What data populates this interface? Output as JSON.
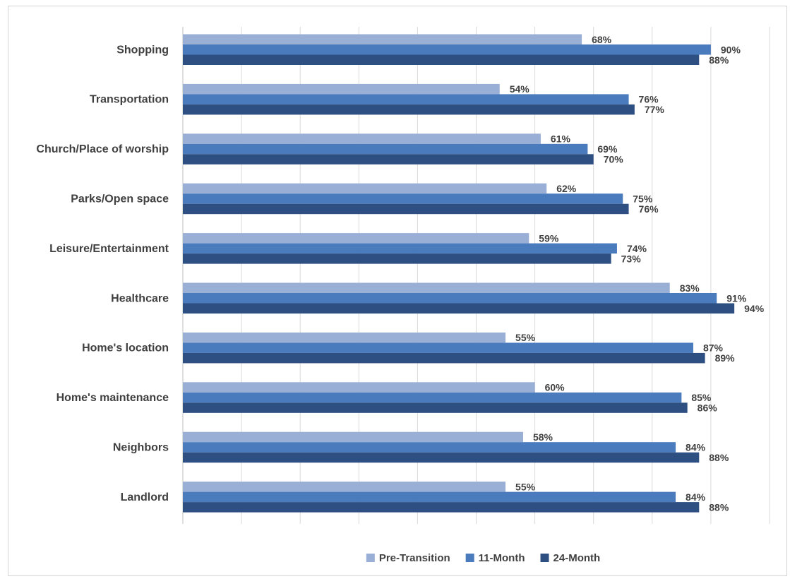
{
  "chart_data": {
    "type": "bar",
    "orientation": "horizontal",
    "categories": [
      "Shopping",
      "Transportation",
      "Church/Place of worship",
      "Parks/Open space",
      "Leisure/Entertainment",
      "Healthcare",
      "Home's location",
      "Home's maintenance",
      "Neighbors",
      "Landlord"
    ],
    "series": [
      {
        "name": "Pre-Transition",
        "values": [
          68,
          54,
          61,
          62,
          59,
          83,
          55,
          60,
          58,
          55
        ],
        "color": "#9aafd6"
      },
      {
        "name": "11-Month",
        "values": [
          90,
          76,
          69,
          75,
          74,
          91,
          87,
          85,
          84,
          84
        ],
        "color": "#4a7bbd"
      },
      {
        "name": "24-Month",
        "values": [
          88,
          77,
          70,
          76,
          73,
          94,
          89,
          86,
          88,
          88
        ],
        "color": "#2e4f82"
      }
    ],
    "value_suffix": "%",
    "xlim": [
      0,
      100
    ],
    "grid": true,
    "legend_position": "bottom"
  }
}
